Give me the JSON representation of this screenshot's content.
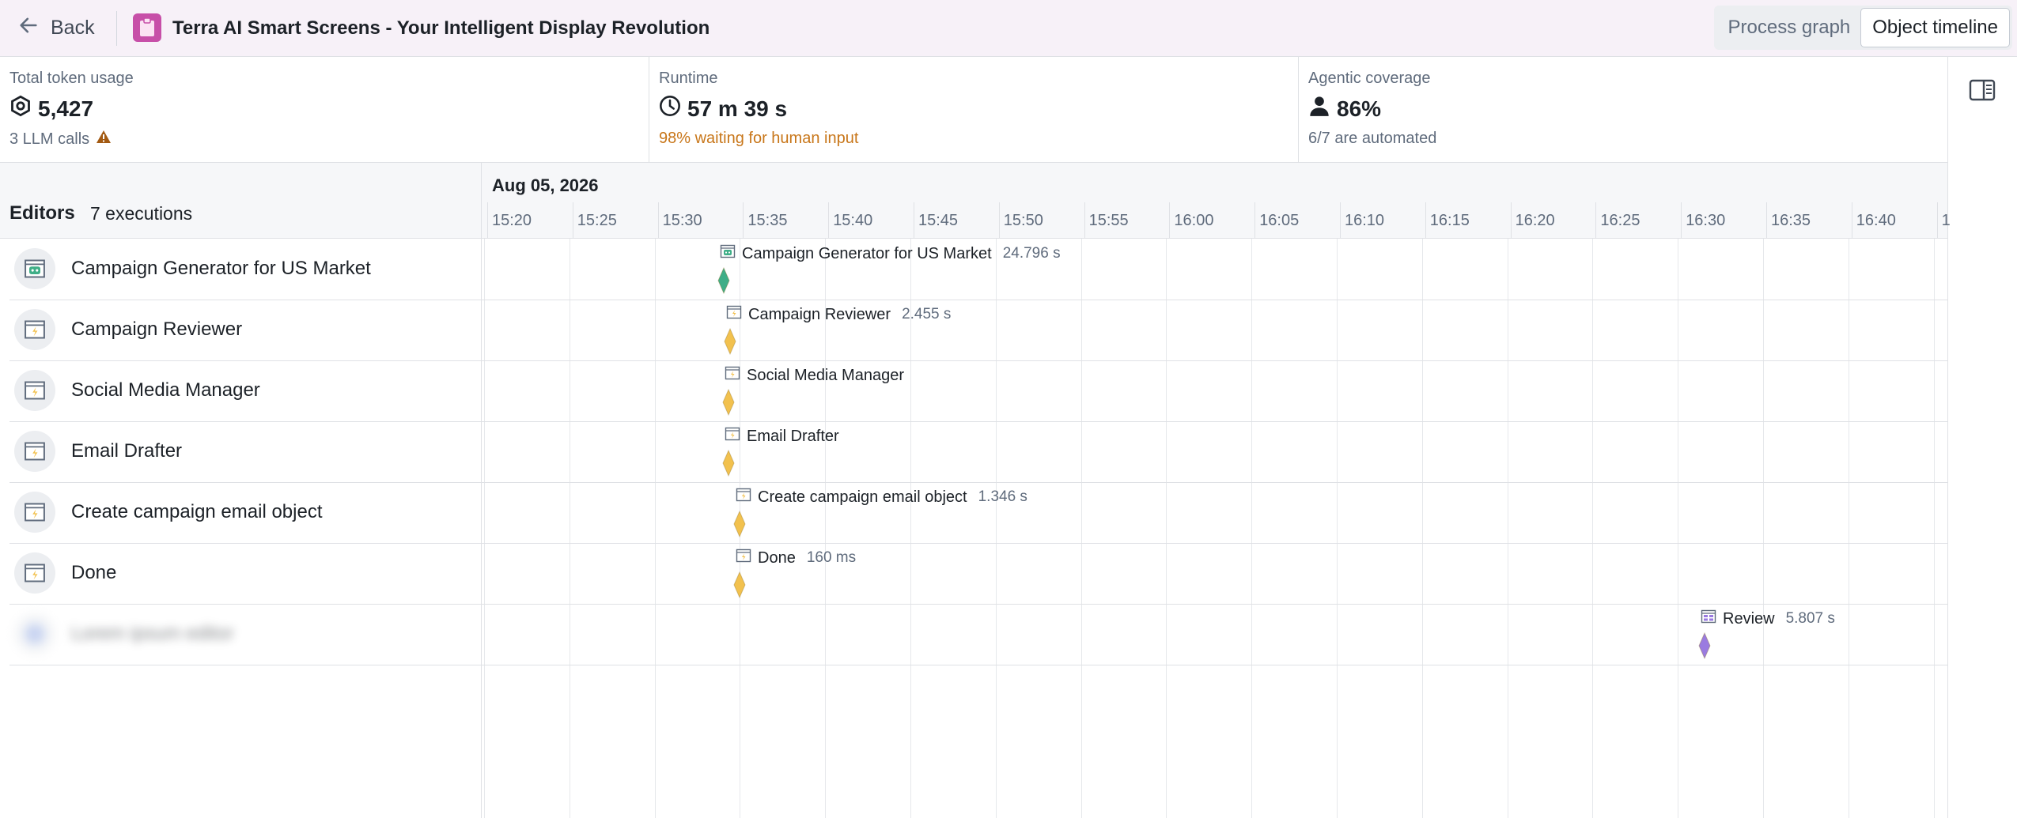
{
  "header": {
    "back_label": "Back",
    "title": "Terra AI Smart Screens - Your Intelligent Display Revolution",
    "views": [
      {
        "label": "Process graph",
        "active": false
      },
      {
        "label": "Object timeline",
        "active": true
      }
    ]
  },
  "metrics": {
    "tokens": {
      "label": "Total token usage",
      "value": "5,427",
      "sub": "3 LLM calls"
    },
    "runtime": {
      "label": "Runtime",
      "value": "57 m 39 s",
      "sub": "98% waiting for human input"
    },
    "coverage": {
      "label": "Agentic coverage",
      "value": "86%",
      "sub": "6/7 are automated"
    }
  },
  "timeline": {
    "editors_label": "Editors",
    "executions_label": "7 executions",
    "date": "Aug 05, 2026",
    "ticks": [
      "15:20",
      "15:25",
      "15:30",
      "15:35",
      "15:40",
      "15:45",
      "15:50",
      "15:55",
      "16:00",
      "16:05",
      "16:10",
      "16:15",
      "16:20",
      "16:25",
      "16:30",
      "16:35",
      "16:40",
      "1"
    ],
    "rows": [
      {
        "name": "Campaign Generator for US Market",
        "icon": "robot-icon"
      },
      {
        "name": "Campaign Reviewer",
        "icon": "action-icon"
      },
      {
        "name": "Social Media Manager",
        "icon": "action-icon"
      },
      {
        "name": "Email Drafter",
        "icon": "action-icon"
      },
      {
        "name": "Create campaign email object",
        "icon": "action-icon"
      },
      {
        "name": "Done",
        "icon": "action-icon"
      },
      {
        "name": "Lorem ipsum editor",
        "icon": "user-icon",
        "blurred": true
      }
    ],
    "events": [
      {
        "label": "Campaign Generator for US Market",
        "duration": "24.796 s",
        "kind": "agent"
      },
      {
        "label": "Campaign Reviewer",
        "duration": "2.455 s",
        "kind": "action"
      },
      {
        "label": "Social Media Manager",
        "duration": "",
        "kind": "action"
      },
      {
        "label": "Email Drafter",
        "duration": "",
        "kind": "action"
      },
      {
        "label": "Create campaign email object",
        "duration": "1.346 s",
        "kind": "action"
      },
      {
        "label": "Done",
        "duration": "160 ms",
        "kind": "action"
      },
      {
        "label": "Review",
        "duration": "5.807 s",
        "kind": "human"
      }
    ]
  },
  "colors": {
    "agent": "#3fae87",
    "action": "#f2c14e",
    "human": "#9a7be0",
    "warning": "#c87619",
    "app_badge": "#c74fa8"
  }
}
